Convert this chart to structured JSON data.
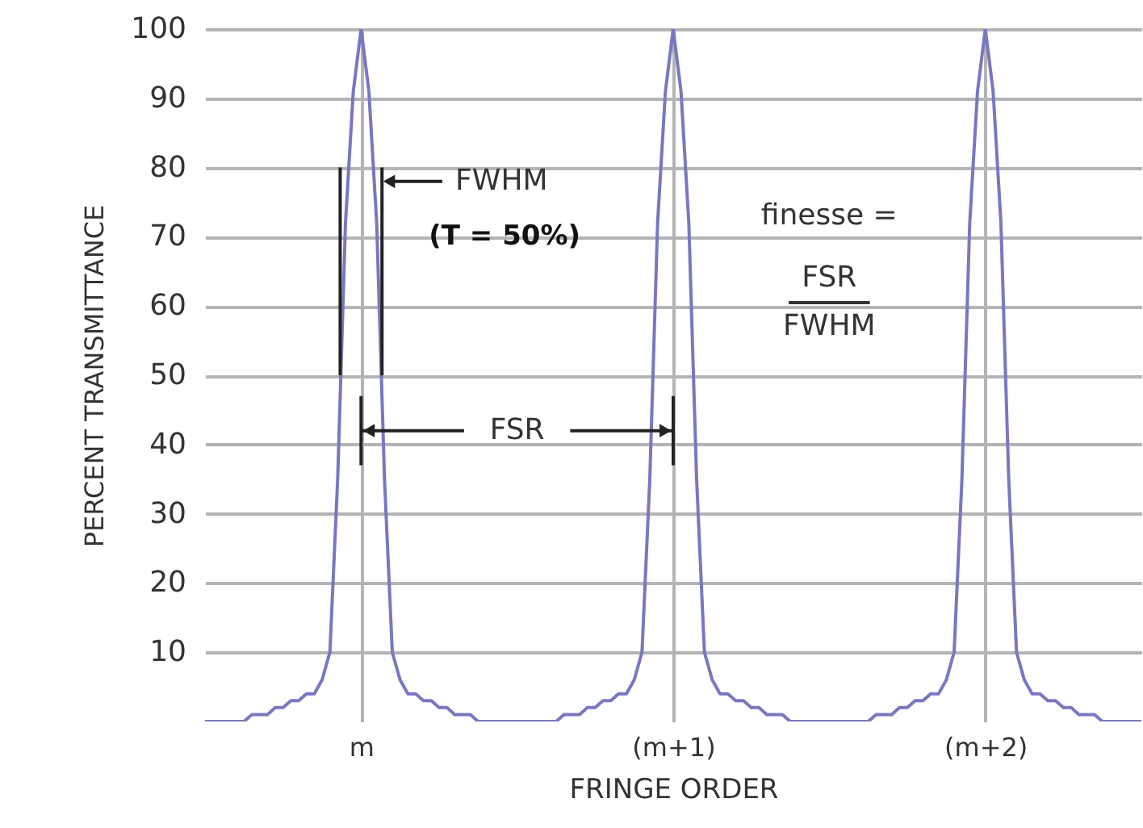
{
  "chart_data": {
    "type": "line",
    "xlabel": "FRINGE ORDER",
    "ylabel": "PERCENT TRANSMITTANCE",
    "categories": [
      null,
      null,
      null,
      null,
      null,
      null,
      null,
      null,
      null,
      null,
      null,
      null,
      null,
      null,
      null,
      null,
      null,
      null,
      null,
      null,
      "m",
      null,
      null,
      null,
      null,
      null,
      null,
      null,
      null,
      null,
      null,
      null,
      null,
      null,
      null,
      null,
      null,
      null,
      null,
      null,
      null,
      null,
      null,
      null,
      null,
      null,
      null,
      null,
      null,
      null,
      null,
      null,
      null,
      null,
      null,
      null,
      null,
      null,
      null,
      null,
      "(m+1)",
      null,
      null,
      null,
      null,
      null,
      null,
      null,
      null,
      null,
      null,
      null,
      null,
      null,
      null,
      null,
      null,
      null,
      null,
      null,
      null,
      null,
      null,
      null,
      null,
      null,
      null,
      null,
      null,
      null,
      null,
      null,
      null,
      null,
      null,
      null,
      null,
      null,
      null,
      null,
      "(m+2)",
      null,
      null,
      null,
      null,
      null,
      null,
      null,
      null,
      null,
      null,
      null,
      null,
      null,
      null,
      null,
      null,
      null,
      null,
      null,
      null
    ],
    "series": [
      {
        "color": "#7878c0",
        "values": [
          0,
          0,
          0,
          0,
          0,
          0,
          1,
          1,
          1,
          2,
          2,
          3,
          3,
          4,
          4,
          6,
          10,
          35,
          72,
          91,
          100,
          91,
          72,
          35,
          10,
          6,
          4,
          4,
          3,
          3,
          2,
          2,
          1,
          1,
          1,
          0,
          0,
          0,
          0,
          0,
          0,
          0,
          0,
          0,
          0,
          0,
          1,
          1,
          1,
          2,
          2,
          3,
          3,
          4,
          4,
          6,
          10,
          35,
          72,
          91,
          100,
          91,
          72,
          35,
          10,
          6,
          4,
          4,
          3,
          3,
          2,
          2,
          1,
          1,
          1,
          0,
          0,
          0,
          0,
          0,
          0,
          0,
          0,
          0,
          0,
          0,
          1,
          1,
          1,
          2,
          2,
          3,
          3,
          4,
          4,
          6,
          10,
          35,
          72,
          91,
          100,
          91,
          72,
          35,
          10,
          6,
          4,
          4,
          3,
          3,
          2,
          2,
          1,
          1,
          1,
          0,
          0,
          0,
          0,
          0,
          0
        ]
      }
    ],
    "ylim": [
      0,
      100
    ],
    "yticks": [
      10,
      20,
      30,
      40,
      50,
      60,
      70,
      80,
      90,
      100
    ],
    "grid": true,
    "line_style": "solid",
    "marker": "none",
    "annotations": [
      "FWHM",
      "(T = 50%)",
      "FSR",
      "finesse =",
      "FSR",
      "FWHM"
    ]
  }
}
